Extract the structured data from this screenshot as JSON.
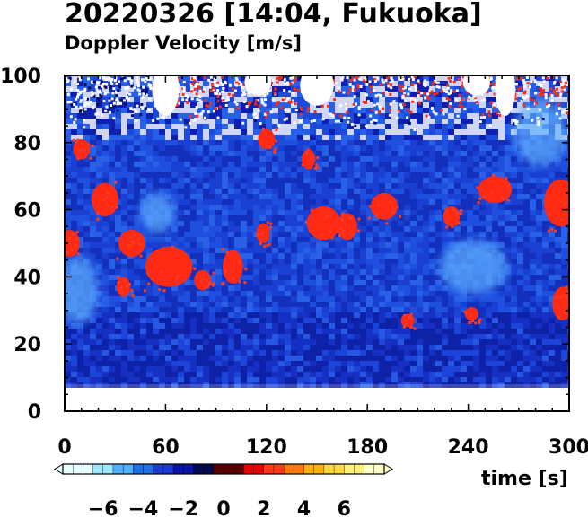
{
  "chart_data": {
    "type": "heatmap",
    "title": "20220326 [14:04, Fukuoka]",
    "subtitle": "Doppler Velocity [m/s]",
    "xlabel": "time [s]",
    "ylabel": "",
    "xlim": [
      0,
      300
    ],
    "ylim": [
      0,
      100
    ],
    "x_ticks": [
      "0",
      "60",
      "120",
      "180",
      "240",
      "300"
    ],
    "y_ticks": [
      "0",
      "20",
      "40",
      "60",
      "80",
      "100"
    ],
    "data_extent": {
      "height_min": 8,
      "height_max": 100,
      "time_min": 0,
      "time_max": 300
    },
    "colorbar": {
      "ticks": [
        "−6",
        "−4",
        "−2",
        "0",
        "2",
        "4",
        "6"
      ],
      "range": [
        -8,
        8
      ],
      "colors": [
        "#e6ffff",
        "#9fe7ff",
        "#4fb2ff",
        "#1f6fe6",
        "#1a3ad6",
        "#0a14a8",
        "#000a50",
        "#5a0000",
        "#e60000",
        "#ff3a1a",
        "#ff7a00",
        "#ffb000",
        "#ffd83a",
        "#fff07a",
        "#ffffc8"
      ]
    },
    "red_patches": [
      {
        "t": 24,
        "h": 63,
        "w": 8,
        "hh": 5
      },
      {
        "t": 40,
        "h": 50,
        "w": 8,
        "hh": 4
      },
      {
        "t": 62,
        "h": 43,
        "w": 14,
        "hh": 6
      },
      {
        "t": 82,
        "h": 39,
        "w": 5,
        "hh": 3
      },
      {
        "t": 100,
        "h": 43,
        "w": 6,
        "hh": 5
      },
      {
        "t": 154,
        "h": 56,
        "w": 10,
        "hh": 5
      },
      {
        "t": 168,
        "h": 55,
        "w": 6,
        "hh": 4
      },
      {
        "t": 190,
        "h": 61,
        "w": 8,
        "hh": 4
      },
      {
        "t": 256,
        "h": 66,
        "w": 10,
        "hh": 4
      },
      {
        "t": 295,
        "h": 62,
        "w": 10,
        "hh": 7
      },
      {
        "t": 3,
        "h": 50,
        "w": 6,
        "hh": 4
      },
      {
        "t": 10,
        "h": 78,
        "w": 5,
        "hh": 3
      },
      {
        "t": 242,
        "h": 29,
        "w": 4,
        "hh": 2
      },
      {
        "t": 204,
        "h": 27,
        "w": 4,
        "hh": 2
      },
      {
        "t": 296,
        "h": 32,
        "w": 6,
        "hh": 5
      },
      {
        "t": 120,
        "h": 81,
        "w": 5,
        "hh": 3
      },
      {
        "t": 145,
        "h": 75,
        "w": 4,
        "hh": 3
      },
      {
        "t": 230,
        "h": 58,
        "w": 5,
        "hh": 3
      },
      {
        "t": 35,
        "h": 37,
        "w": 4,
        "hh": 3
      },
      {
        "t": 118,
        "h": 53,
        "w": 4,
        "hh": 3
      }
    ],
    "red_top_band": {
      "h_min": 88,
      "h_max": 100,
      "t_min": 60,
      "t_max": 300
    },
    "light_patches": [
      {
        "t": 55,
        "h": 59,
        "w": 10,
        "hh": 6
      },
      {
        "t": 283,
        "h": 83,
        "w": 16,
        "hh": 10
      },
      {
        "t": 243,
        "h": 43,
        "w": 20,
        "hh": 8
      },
      {
        "t": 8,
        "h": 36,
        "w": 12,
        "hh": 10
      }
    ],
    "white_gap_patches": [
      {
        "t": 60,
        "h": 96,
        "w": 8,
        "hh": 8
      },
      {
        "t": 150,
        "h": 97,
        "w": 10,
        "hh": 6
      },
      {
        "t": 245,
        "h": 98,
        "w": 8,
        "hh": 4
      },
      {
        "t": 262,
        "h": 96,
        "w": 6,
        "hh": 8
      },
      {
        "t": 115,
        "h": 98,
        "w": 8,
        "hh": 4
      }
    ]
  }
}
